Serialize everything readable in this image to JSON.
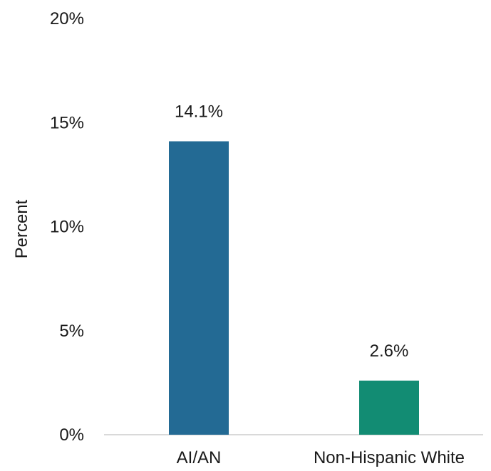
{
  "chart_data": {
    "type": "bar",
    "title": "",
    "xlabel": "",
    "ylabel": "Percent",
    "ylim": [
      0,
      20
    ],
    "yticks": [
      0,
      5,
      10,
      15,
      20
    ],
    "ytick_labels": [
      "0%",
      "5%",
      "10%",
      "15%",
      "20%"
    ],
    "grid": false,
    "categories": [
      "AI/AN",
      "Non-Hispanic White"
    ],
    "values": [
      14.1,
      2.6
    ],
    "data_labels": [
      "14.1%",
      "2.6%"
    ],
    "colors": [
      "#236a94",
      "#128c73"
    ]
  }
}
